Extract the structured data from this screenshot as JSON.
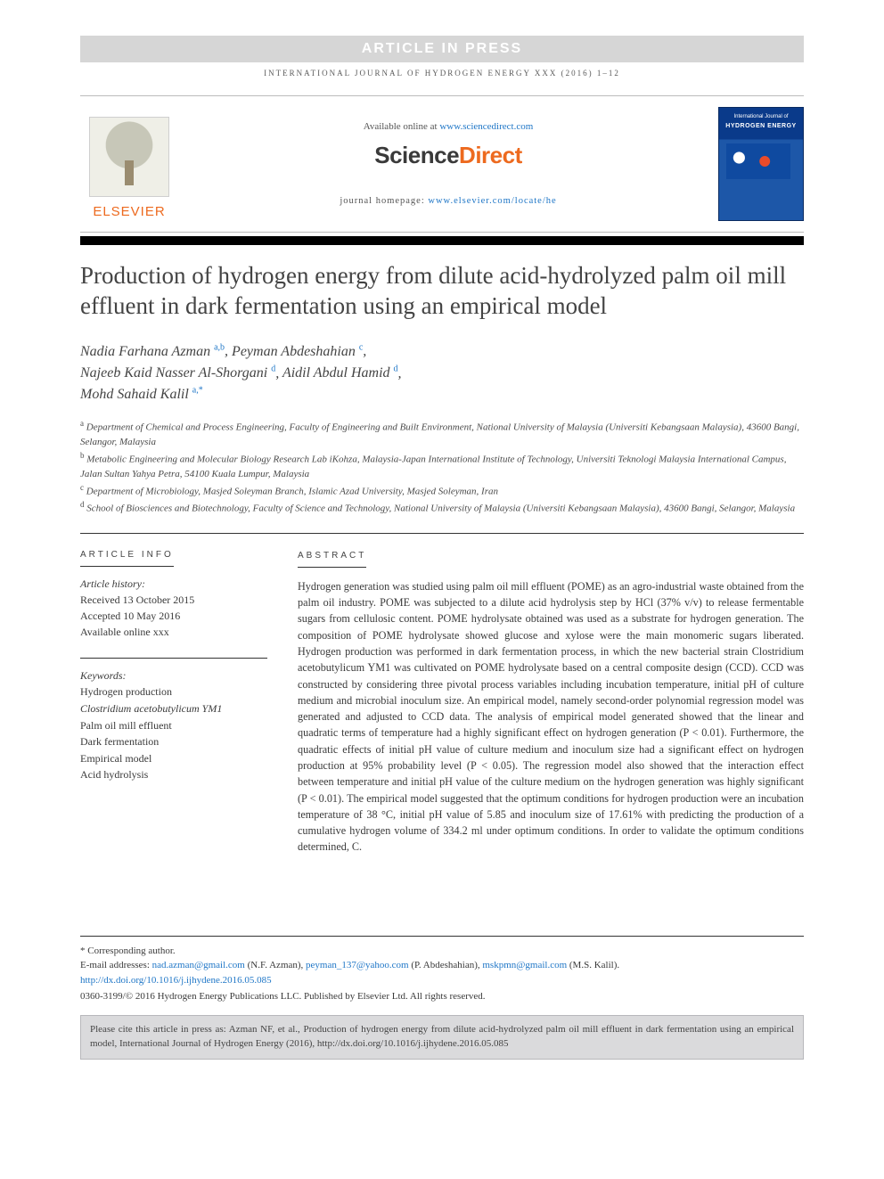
{
  "banner": "ARTICLE IN PRESS",
  "running_head": "INTERNATIONAL JOURNAL OF HYDROGEN ENERGY XXX (2016) 1–12",
  "header": {
    "publisher_logo_word": "ELSEVIER",
    "available_prefix": "Available online at ",
    "available_link": "www.sciencedirect.com",
    "sd_sci": "Science",
    "sd_dir": "Direct",
    "homepage_prefix": "journal homepage: ",
    "homepage_link": "www.elsevier.com/locate/he",
    "cover_line1": "International Journal of",
    "cover_line2": "HYDROGEN ENERGY"
  },
  "title": "Production of hydrogen energy from dilute acid-hydrolyzed palm oil mill effluent in dark fermentation using an empirical model",
  "authors": {
    "a1_name": "Nadia Farhana Azman",
    "a1_sup": "a,b",
    "a2_name": "Peyman Abdeshahian",
    "a2_sup": "c",
    "a3_name": "Najeeb Kaid Nasser Al-Shorgani",
    "a3_sup": "d",
    "a4_name": "Aidil Abdul Hamid",
    "a4_sup": "d",
    "a5_name": "Mohd Sahaid Kalil",
    "a5_sup": "a,*"
  },
  "affiliations": {
    "a": "Department of Chemical and Process Engineering, Faculty of Engineering and Built Environment, National University of Malaysia (Universiti Kebangsaan Malaysia), 43600 Bangi, Selangor, Malaysia",
    "b": "Metabolic Engineering and Molecular Biology Research Lab iKohza, Malaysia-Japan International Institute of Technology, Universiti Teknologi Malaysia International Campus, Jalan Sultan Yahya Petra, 54100 Kuala Lumpur, Malaysia",
    "c": "Department of Microbiology, Masjed Soleyman Branch, Islamic Azad University, Masjed Soleyman, Iran",
    "d": "School of Biosciences and Biotechnology, Faculty of Science and Technology, National University of Malaysia (Universiti Kebangsaan Malaysia), 43600 Bangi, Selangor, Malaysia"
  },
  "info": {
    "heading": "ARTICLE INFO",
    "history_label": "Article history:",
    "received": "Received 13 October 2015",
    "accepted": "Accepted 10 May 2016",
    "online": "Available online xxx",
    "kw_label": "Keywords:",
    "kw1": "Hydrogen production",
    "kw2": "Clostridium acetobutylicum YM1",
    "kw3": "Palm oil mill effluent",
    "kw4": "Dark fermentation",
    "kw5": "Empirical model",
    "kw6": "Acid hydrolysis"
  },
  "abstract": {
    "heading": "ABSTRACT",
    "text": "Hydrogen generation was studied using palm oil mill effluent (POME) as an agro-industrial waste obtained from the palm oil industry. POME was subjected to a dilute acid hydrolysis step by HCl (37% v/v) to release fermentable sugars from cellulosic content. POME hydrolysate obtained was used as a substrate for hydrogen generation. The composition of POME hydrolysate showed glucose and xylose were the main monomeric sugars liberated. Hydrogen production was performed in dark fermentation process, in which the new bacterial strain Clostridium acetobutylicum YM1 was cultivated on POME hydrolysate based on a central composite design (CCD). CCD was constructed by considering three pivotal process variables including incubation temperature, initial pH of culture medium and microbial inoculum size. An empirical model, namely second-order polynomial regression model was generated and adjusted to CCD data. The analysis of empirical model generated showed that the linear and quadratic terms of temperature had a highly significant effect on hydrogen generation (P < 0.01). Furthermore, the quadratic effects of initial pH value of culture medium and inoculum size had a significant effect on hydrogen production at 95% probability level (P < 0.05). The regression model also showed that the interaction effect between temperature and initial pH value of the culture medium on the hydrogen generation was highly significant (P < 0.01). The empirical model suggested that the optimum conditions for hydrogen production were an incubation temperature of 38 °C, initial pH value of 5.85 and inoculum size of 17.61% with predicting the production of a cumulative hydrogen volume of 334.2 ml under optimum conditions. In order to validate the optimum conditions determined, C."
  },
  "footer": {
    "corr_label": "* Corresponding author.",
    "email_label": "E-mail addresses: ",
    "e1": "nad.azman@gmail.com",
    "e1_who": " (N.F. Azman), ",
    "e2": "peyman_137@yahoo.com",
    "e2_who": " (P. Abdeshahian), ",
    "e3": "mskpmn@gmail.com",
    "e3_who": " (M.S. Kalil).",
    "doi": "http://dx.doi.org/10.1016/j.ijhydene.2016.05.085",
    "copyright": "0360-3199/© 2016 Hydrogen Energy Publications LLC. Published by Elsevier Ltd. All rights reserved."
  },
  "citebox": "Please cite this article in press as: Azman NF, et al., Production of hydrogen energy from dilute acid-hydrolyzed palm oil mill effluent in dark fermentation using an empirical model, International Journal of Hydrogen Energy (2016), http://dx.doi.org/10.1016/j.ijhydene.2016.05.085"
}
